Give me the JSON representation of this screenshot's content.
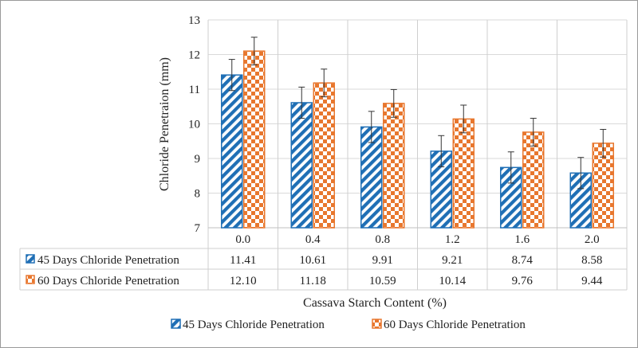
{
  "chart_data": {
    "type": "bar",
    "categories": [
      "0.0",
      "0.4",
      "0.8",
      "1.2",
      "1.6",
      "2.0"
    ],
    "series": [
      {
        "name": "45 Days Chloride Penetration",
        "values": [
          11.41,
          10.61,
          9.91,
          9.21,
          8.74,
          8.58
        ],
        "value_labels": [
          "11.41",
          "10.61",
          "9.91",
          "9.21",
          "8.74",
          "8.58"
        ],
        "error": [
          0.45,
          0.45,
          0.45,
          0.45,
          0.45,
          0.45
        ],
        "color": "#1f6fb5",
        "pattern": "diagonal-stripes"
      },
      {
        "name": "60 Days Chloride Penetration",
        "values": [
          12.1,
          11.18,
          10.59,
          10.14,
          9.76,
          9.44
        ],
        "value_labels": [
          "12.10",
          "11.18",
          "10.59",
          "10.14",
          "9.76",
          "9.44"
        ],
        "error": [
          0.4,
          0.4,
          0.4,
          0.4,
          0.4,
          0.4
        ],
        "color": "#e8772e",
        "pattern": "checkerboard"
      }
    ],
    "ylabel": "Chloride Penetraion (mm)",
    "xlabel": "Cassava Starch Content (%)",
    "ylim": [
      7,
      13
    ],
    "yticks": [
      "7",
      "8",
      "9",
      "10",
      "11",
      "12",
      "13"
    ],
    "grid": true,
    "data_table": true,
    "legend_placement": "bottom"
  }
}
